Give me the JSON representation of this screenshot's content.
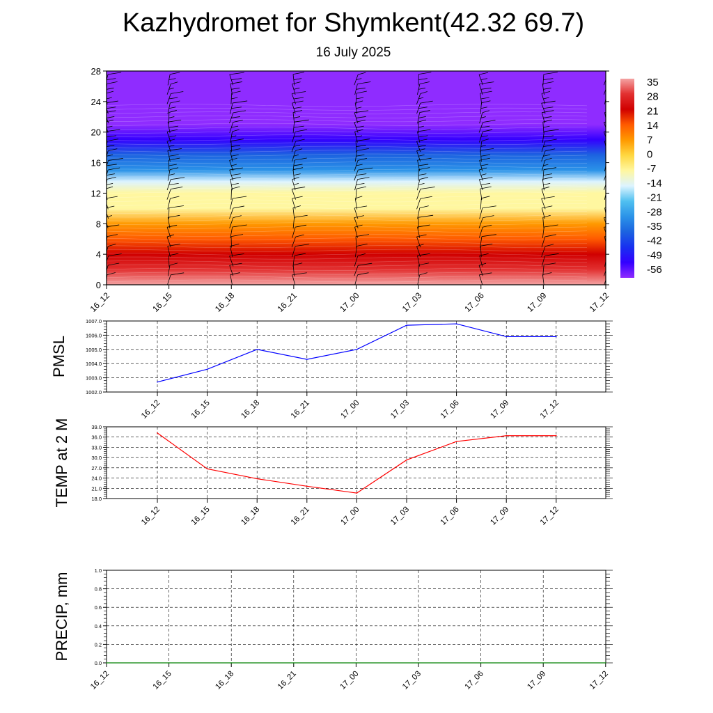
{
  "header": {
    "title": "Kazhydromet for Shymkent(42.32 69.7)",
    "subtitle": "16 July 2025"
  },
  "colors": {
    "pmsl_line": "#0000ff",
    "temp_line": "#ff0000",
    "precip_line": "#008000",
    "grid": "#555555"
  },
  "chart_data": [
    {
      "type": "heatmap",
      "title": "",
      "x_tick_labels": [
        "16_12",
        "16_15",
        "16_18",
        "16_21",
        "17_00",
        "17_03",
        "17_06",
        "17_09",
        "17_12"
      ],
      "y_ticks": [
        0,
        4,
        8,
        12,
        16,
        20,
        24,
        28
      ],
      "ylim": [
        0,
        28
      ],
      "colorbar": {
        "labels": [
          "35",
          "28",
          "21",
          "14",
          "7",
          "0",
          "-7",
          "-14",
          "-21",
          "-28",
          "-35",
          "-42",
          "-49",
          "-56"
        ],
        "colors": [
          "#f4a3a3",
          "#e23030",
          "#d00000",
          "#ff5a00",
          "#ff9900",
          "#ffd740",
          "#fff7a0",
          "#ddf4ff",
          "#50c0f0",
          "#2b93e8",
          "#1c63e0",
          "#1830f0",
          "#3300ff",
          "#8f2cff"
        ]
      },
      "temperature_levels": [
        {
          "height": 0,
          "temp": 32
        },
        {
          "height": 2,
          "temp": 25
        },
        {
          "height": 4,
          "temp": 21
        },
        {
          "height": 6,
          "temp": 14
        },
        {
          "height": 8,
          "temp": 5
        },
        {
          "height": 10,
          "temp": -4
        },
        {
          "height": 12,
          "temp": -9
        },
        {
          "height": 13.5,
          "temp": -14
        },
        {
          "height": 15,
          "temp": -28
        },
        {
          "height": 17,
          "temp": -38
        },
        {
          "height": 19,
          "temp": -48
        },
        {
          "height": 21,
          "temp": -56
        },
        {
          "height": 22.5,
          "temp": -60
        },
        {
          "height": 28,
          "temp": -62
        }
      ],
      "wind_barbs": "vertical profile at each time step"
    },
    {
      "type": "line",
      "ylabel": "PMSL",
      "categories": [
        "16_12",
        "16_15",
        "16_18",
        "16_21",
        "17_00",
        "17_03",
        "17_06",
        "17_09",
        "17_12"
      ],
      "values": [
        1002.7,
        1003.6,
        1005.0,
        1004.3,
        1005.0,
        1006.7,
        1006.8,
        1005.9,
        1005.9
      ],
      "ylim": [
        1002.0,
        1007.0
      ],
      "y_tick_labels": [
        "1002.0",
        "1003.0",
        "1004.0",
        "1005.0",
        "1006.0",
        "1007.0"
      ]
    },
    {
      "type": "line",
      "ylabel": "TEMP at 2 M",
      "categories": [
        "16_12",
        "16_15",
        "16_18",
        "16_21",
        "17_00",
        "17_03",
        "17_06",
        "17_09",
        "17_12"
      ],
      "values": [
        37.2,
        26.7,
        23.8,
        21.6,
        19.6,
        29.3,
        34.7,
        36.4,
        36.4
      ],
      "ylim": [
        18.0,
        39.0
      ],
      "y_tick_labels": [
        "18.0",
        "21.0",
        "24.0",
        "27.0",
        "30.0",
        "33.0",
        "36.0",
        "39.0"
      ]
    },
    {
      "type": "line",
      "ylabel": "PRECIP, mm",
      "x_tick_labels": [
        "16_12",
        "16_15",
        "16_18",
        "16_21",
        "17_00",
        "17_03",
        "17_06",
        "17_09",
        "17_12"
      ],
      "values": [
        0,
        0,
        0,
        0,
        0,
        0,
        0,
        0,
        0
      ],
      "ylim": [
        0.0,
        1.0
      ],
      "y_tick_labels": [
        "0.0",
        "0.2",
        "0.4",
        "0.6",
        "0.8",
        "1.0"
      ]
    }
  ]
}
